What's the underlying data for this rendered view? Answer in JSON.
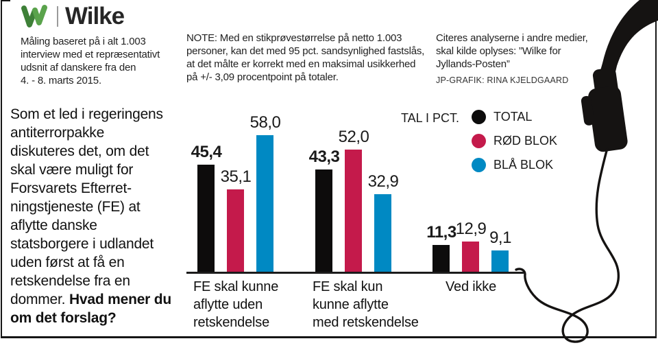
{
  "brand": {
    "logo_mark": "W",
    "logo_name": "Wilke",
    "logo_green_dark": "#3e8038",
    "logo_green_light": "#5aa34c"
  },
  "header": {
    "methodology": "Måling baseret på i alt 1.003\ninterview med et repræsentativt\nudsnit af danskere fra den\n4. - 8. marts 2015.",
    "note": "NOTE: Med en stikprøvestørrelse på netto 1.003\npersoner, kan det med 95 pct. sandsynlighed fastslås,\nat det målte er korrekt med en maksimal usikkerhed\npå +/- 3,09 procentpoint på totaler.",
    "citation": "Citeres analyserne i andre medier,\nskal kilde oplyses: ”Wilke for\nJyllands-Posten”",
    "credit": "JP-GRAFIK: RINA KJELDGAARD"
  },
  "intro": {
    "text": "Som et led i regeringens\nantiterrorpakke\ndiskuteres det, om det\nskal være muligt for\nForsvarets Efterret-\nningstjeneste (FE) at\naflytte danske\nstatsborgere i udlandet\nuden først at få en\nretskendelse fra en\ndommer. ",
    "question": "Hvad mener du om det forslag?"
  },
  "legend": {
    "title": "TAL I PCT.",
    "items": [
      {
        "label": "TOTAL",
        "color": "#0d0c0c"
      },
      {
        "label": "RØD BLOK",
        "color": "#c41a4b"
      },
      {
        "label": "BLÅ BLOK",
        "color": "#0089c3"
      }
    ]
  },
  "chart_data": {
    "type": "bar",
    "title": "",
    "unit_note": "TAL I PCT.",
    "categories": [
      "FE skal kunne\naflytte uden\nretskendelse",
      "FE skal kun\nkunne aflytte\nmed retskendelse",
      "Ved ikke"
    ],
    "series": [
      {
        "name": "TOTAL",
        "color": "#0d0c0c",
        "values": [
          45.4,
          43.3,
          11.3
        ]
      },
      {
        "name": "RØD BLOK",
        "color": "#c41a4b",
        "values": [
          35.1,
          52.0,
          12.9
        ]
      },
      {
        "name": "BLÅ BLOK",
        "color": "#0089c3",
        "values": [
          58.0,
          32.9,
          9.1
        ]
      }
    ],
    "value_labels": [
      [
        "45,4",
        "35,1",
        "58,0"
      ],
      [
        "43,3",
        "52,0",
        "32,9"
      ],
      [
        "11,3",
        "12,9",
        "9,1"
      ]
    ],
    "ylim": [
      0,
      60
    ],
    "grid": false,
    "legend_position": "top-right"
  },
  "illustration": {
    "name": "headphone-with-cable",
    "color": "#151312"
  }
}
